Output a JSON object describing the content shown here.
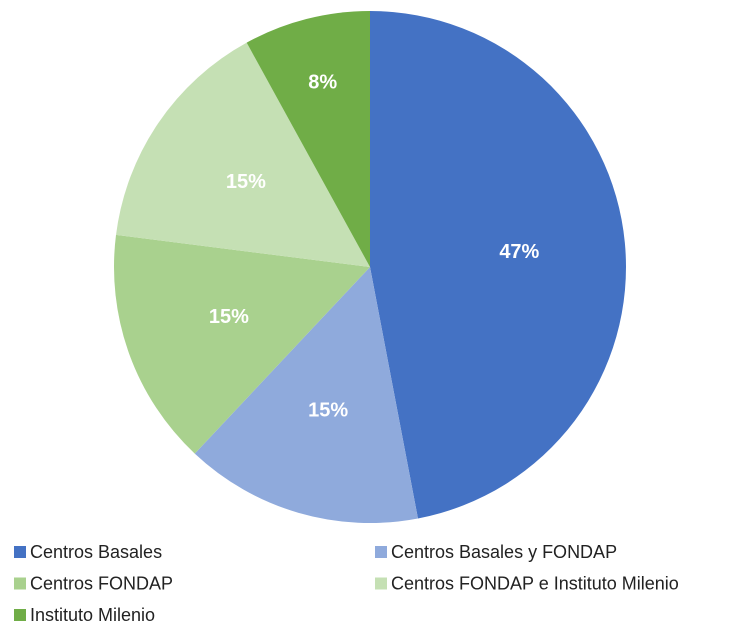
{
  "chart_data": {
    "type": "pie",
    "categories": [
      "Centros Basales",
      "Centros Basales y FONDAP",
      "Centros FONDAP",
      "Centros FONDAP e Instituto Milenio",
      "Instituto Milenio"
    ],
    "values": [
      47,
      15,
      15,
      15,
      8
    ],
    "value_labels": [
      "47%",
      "15%",
      "15%",
      "15%",
      "8%"
    ],
    "colors": [
      "#4472c4",
      "#8faadc",
      "#a9d18e",
      "#c5e0b4",
      "#70ad47"
    ],
    "legend": "bottom"
  }
}
